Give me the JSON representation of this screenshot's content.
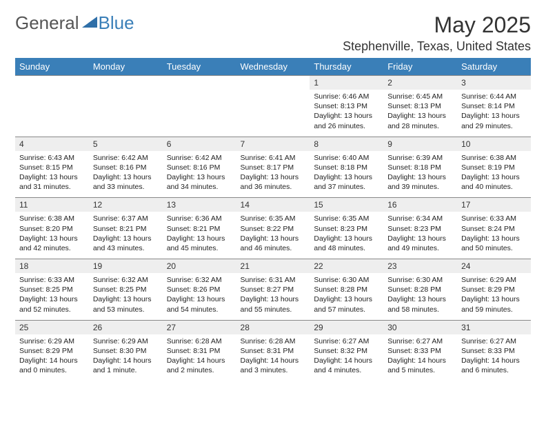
{
  "logo": {
    "word1": "General",
    "word2": "Blue",
    "icon_color": "#2f6fa8"
  },
  "title": "May 2025",
  "location": "Stephenville, Texas, United States",
  "colors": {
    "header_bg": "#3a7fb8",
    "header_text": "#ffffff",
    "daynum_bg": "#eeeeee",
    "border": "#888888",
    "text": "#333333"
  },
  "day_headers": [
    "Sunday",
    "Monday",
    "Tuesday",
    "Wednesday",
    "Thursday",
    "Friday",
    "Saturday"
  ],
  "weeks": [
    {
      "nums": [
        "",
        "",
        "",
        "",
        "1",
        "2",
        "3"
      ],
      "info": [
        "",
        "",
        "",
        "",
        "Sunrise: 6:46 AM\nSunset: 8:13 PM\nDaylight: 13 hours and 26 minutes.",
        "Sunrise: 6:45 AM\nSunset: 8:13 PM\nDaylight: 13 hours and 28 minutes.",
        "Sunrise: 6:44 AM\nSunset: 8:14 PM\nDaylight: 13 hours and 29 minutes."
      ]
    },
    {
      "nums": [
        "4",
        "5",
        "6",
        "7",
        "8",
        "9",
        "10"
      ],
      "info": [
        "Sunrise: 6:43 AM\nSunset: 8:15 PM\nDaylight: 13 hours and 31 minutes.",
        "Sunrise: 6:42 AM\nSunset: 8:16 PM\nDaylight: 13 hours and 33 minutes.",
        "Sunrise: 6:42 AM\nSunset: 8:16 PM\nDaylight: 13 hours and 34 minutes.",
        "Sunrise: 6:41 AM\nSunset: 8:17 PM\nDaylight: 13 hours and 36 minutes.",
        "Sunrise: 6:40 AM\nSunset: 8:18 PM\nDaylight: 13 hours and 37 minutes.",
        "Sunrise: 6:39 AM\nSunset: 8:18 PM\nDaylight: 13 hours and 39 minutes.",
        "Sunrise: 6:38 AM\nSunset: 8:19 PM\nDaylight: 13 hours and 40 minutes."
      ]
    },
    {
      "nums": [
        "11",
        "12",
        "13",
        "14",
        "15",
        "16",
        "17"
      ],
      "info": [
        "Sunrise: 6:38 AM\nSunset: 8:20 PM\nDaylight: 13 hours and 42 minutes.",
        "Sunrise: 6:37 AM\nSunset: 8:21 PM\nDaylight: 13 hours and 43 minutes.",
        "Sunrise: 6:36 AM\nSunset: 8:21 PM\nDaylight: 13 hours and 45 minutes.",
        "Sunrise: 6:35 AM\nSunset: 8:22 PM\nDaylight: 13 hours and 46 minutes.",
        "Sunrise: 6:35 AM\nSunset: 8:23 PM\nDaylight: 13 hours and 48 minutes.",
        "Sunrise: 6:34 AM\nSunset: 8:23 PM\nDaylight: 13 hours and 49 minutes.",
        "Sunrise: 6:33 AM\nSunset: 8:24 PM\nDaylight: 13 hours and 50 minutes."
      ]
    },
    {
      "nums": [
        "18",
        "19",
        "20",
        "21",
        "22",
        "23",
        "24"
      ],
      "info": [
        "Sunrise: 6:33 AM\nSunset: 8:25 PM\nDaylight: 13 hours and 52 minutes.",
        "Sunrise: 6:32 AM\nSunset: 8:25 PM\nDaylight: 13 hours and 53 minutes.",
        "Sunrise: 6:32 AM\nSunset: 8:26 PM\nDaylight: 13 hours and 54 minutes.",
        "Sunrise: 6:31 AM\nSunset: 8:27 PM\nDaylight: 13 hours and 55 minutes.",
        "Sunrise: 6:30 AM\nSunset: 8:28 PM\nDaylight: 13 hours and 57 minutes.",
        "Sunrise: 6:30 AM\nSunset: 8:28 PM\nDaylight: 13 hours and 58 minutes.",
        "Sunrise: 6:29 AM\nSunset: 8:29 PM\nDaylight: 13 hours and 59 minutes."
      ]
    },
    {
      "nums": [
        "25",
        "26",
        "27",
        "28",
        "29",
        "30",
        "31"
      ],
      "info": [
        "Sunrise: 6:29 AM\nSunset: 8:29 PM\nDaylight: 14 hours and 0 minutes.",
        "Sunrise: 6:29 AM\nSunset: 8:30 PM\nDaylight: 14 hours and 1 minute.",
        "Sunrise: 6:28 AM\nSunset: 8:31 PM\nDaylight: 14 hours and 2 minutes.",
        "Sunrise: 6:28 AM\nSunset: 8:31 PM\nDaylight: 14 hours and 3 minutes.",
        "Sunrise: 6:27 AM\nSunset: 8:32 PM\nDaylight: 14 hours and 4 minutes.",
        "Sunrise: 6:27 AM\nSunset: 8:33 PM\nDaylight: 14 hours and 5 minutes.",
        "Sunrise: 6:27 AM\nSunset: 8:33 PM\nDaylight: 14 hours and 6 minutes."
      ]
    }
  ]
}
